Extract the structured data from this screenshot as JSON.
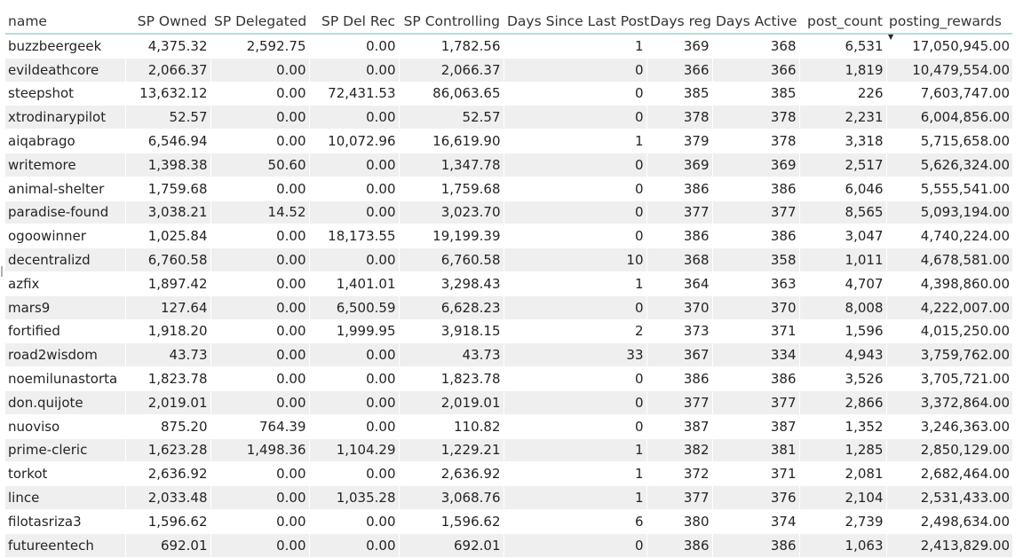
{
  "columns": [
    "name",
    "SP Owned",
    "SP Delegated",
    "SP Del Rec",
    "SP Controlling",
    "Days Since Last Post",
    "Days reg",
    "Days Active",
    "post_count",
    "posting_rewards"
  ],
  "rows": [
    [
      "buzzbeergeek",
      "4,375.32",
      "2,592.75",
      "0.00",
      "1,782.56",
      "1",
      "369",
      "368",
      "6,531",
      "17,050,945.00"
    ],
    [
      "evildeathcore",
      "2,066.37",
      "0.00",
      "0.00",
      "2,066.37",
      "0",
      "366",
      "366",
      "1,819",
      "10,479,554.00"
    ],
    [
      "steepshot",
      "13,632.12",
      "0.00",
      "72,431.53",
      "86,063.65",
      "0",
      "385",
      "385",
      "226",
      "7,603,747.00"
    ],
    [
      "xtrodinarypilot",
      "52.57",
      "0.00",
      "0.00",
      "52.57",
      "0",
      "378",
      "378",
      "2,231",
      "6,004,856.00"
    ],
    [
      "aiqabrago",
      "6,546.94",
      "0.00",
      "10,072.96",
      "16,619.90",
      "1",
      "379",
      "378",
      "3,318",
      "5,715,658.00"
    ],
    [
      "writemore",
      "1,398.38",
      "50.60",
      "0.00",
      "1,347.78",
      "0",
      "369",
      "369",
      "2,517",
      "5,626,324.00"
    ],
    [
      "animal-shelter",
      "1,759.68",
      "0.00",
      "0.00",
      "1,759.68",
      "0",
      "386",
      "386",
      "6,046",
      "5,555,541.00"
    ],
    [
      "paradise-found",
      "3,038.21",
      "14.52",
      "0.00",
      "3,023.70",
      "0",
      "377",
      "377",
      "8,565",
      "5,093,194.00"
    ],
    [
      "ogoowinner",
      "1,025.84",
      "0.00",
      "18,173.55",
      "19,199.39",
      "0",
      "386",
      "386",
      "3,047",
      "4,740,224.00"
    ],
    [
      "decentralizd",
      "6,760.58",
      "0.00",
      "0.00",
      "6,760.58",
      "10",
      "368",
      "358",
      "1,011",
      "4,678,581.00"
    ],
    [
      "azfix",
      "1,897.42",
      "0.00",
      "1,401.01",
      "3,298.43",
      "1",
      "364",
      "363",
      "4,707",
      "4,398,860.00"
    ],
    [
      "mars9",
      "127.64",
      "0.00",
      "6,500.59",
      "6,628.23",
      "0",
      "370",
      "370",
      "8,008",
      "4,222,007.00"
    ],
    [
      "fortified",
      "1,918.20",
      "0.00",
      "1,999.95",
      "3,918.15",
      "2",
      "373",
      "371",
      "1,596",
      "4,015,250.00"
    ],
    [
      "road2wisdom",
      "43.73",
      "0.00",
      "0.00",
      "43.73",
      "33",
      "367",
      "334",
      "4,943",
      "3,759,762.00"
    ],
    [
      "noemilunastorta",
      "1,823.78",
      "0.00",
      "0.00",
      "1,823.78",
      "0",
      "386",
      "386",
      "3,526",
      "3,705,721.00"
    ],
    [
      "don.quijote",
      "2,019.01",
      "0.00",
      "0.00",
      "2,019.01",
      "0",
      "377",
      "377",
      "2,866",
      "3,372,864.00"
    ],
    [
      "nuoviso",
      "875.20",
      "764.39",
      "0.00",
      "110.82",
      "0",
      "387",
      "387",
      "1,352",
      "3,246,363.00"
    ],
    [
      "prime-cleric",
      "1,623.28",
      "1,498.36",
      "1,104.29",
      "1,229.21",
      "1",
      "382",
      "381",
      "1,285",
      "2,850,129.00"
    ],
    [
      "torkot",
      "2,636.92",
      "0.00",
      "0.00",
      "2,636.92",
      "1",
      "372",
      "371",
      "2,081",
      "2,682,464.00"
    ],
    [
      "lince",
      "2,033.48",
      "0.00",
      "1,035.28",
      "3,068.76",
      "1",
      "377",
      "376",
      "2,104",
      "2,531,433.00"
    ],
    [
      "filotasriza3",
      "1,596.62",
      "0.00",
      "0.00",
      "1,596.62",
      "6",
      "380",
      "374",
      "2,739",
      "2,498,634.00"
    ],
    [
      "futureentech",
      "692.01",
      "0.00",
      "0.00",
      "692.01",
      "0",
      "386",
      "386",
      "1,063",
      "2,413,829.00"
    ]
  ],
  "sort": {
    "column": "posting_rewards",
    "direction": "descending"
  },
  "colors": {
    "header_underline": "#b9dada",
    "row_alt": "#efefef",
    "text": "#252423"
  }
}
